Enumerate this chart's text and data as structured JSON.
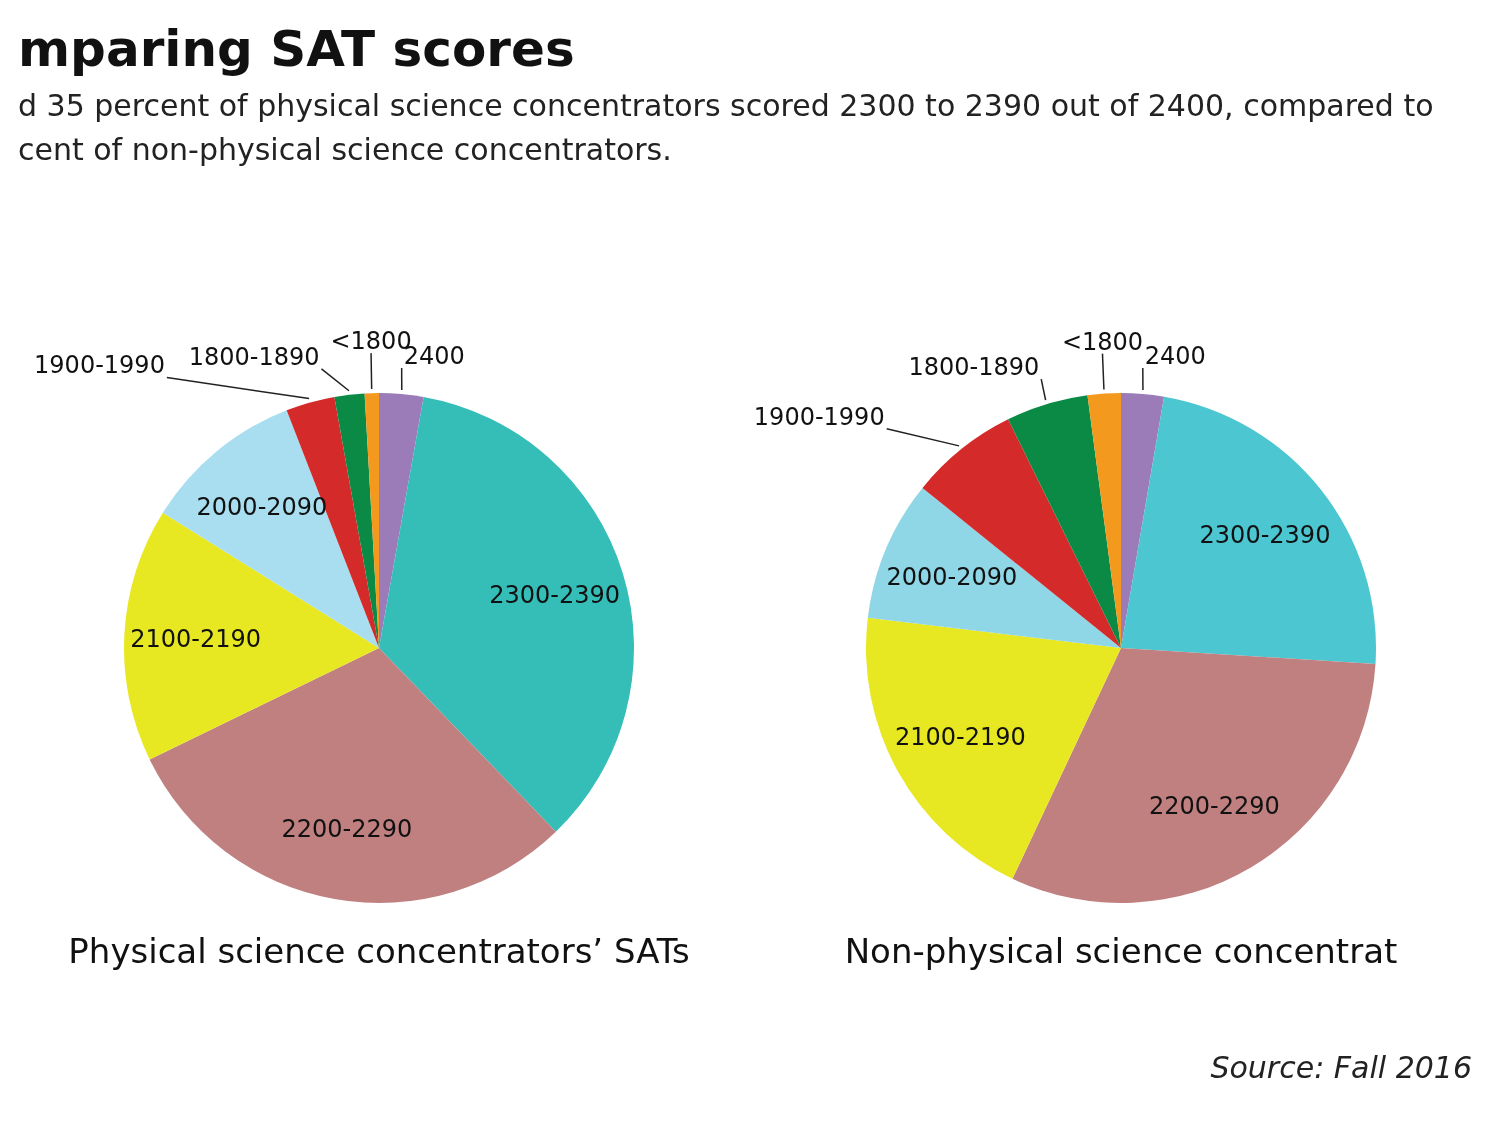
{
  "chart_data": [
    {
      "type": "pie",
      "title": "mparing SAT scores",
      "subtitle": "d 35 percent of physical science concentrators scored 2300 to 2390 out of 2400, compared to\ncent of non-physical science concentrators.",
      "xlabel": "Physical science concentrators’ SATs",
      "categories": [
        "2400",
        "2300-2390",
        "2200-2290",
        "2100-2190",
        "2000-2090",
        "1900-1990",
        "1800-1890",
        "<1800"
      ],
      "values": [
        2.8,
        35,
        30,
        16.1,
        10.2,
        3.1,
        1.9,
        0.9
      ],
      "colors": [
        "#9b7bb8",
        "#35bdb8",
        "#c08080",
        "#e8e822",
        "#a8def0",
        "#d42a2a",
        "#0a8a44",
        "#f39a1e"
      ]
    },
    {
      "type": "pie",
      "xlabel": "Non-physical science concentrat",
      "categories": [
        "2400",
        "2300-2390",
        "2200-2290",
        "2100-2190",
        "2000-2090",
        "1900-1990",
        "1800-1890",
        "<1800"
      ],
      "values": [
        2.7,
        23.3,
        31,
        19.9,
        8.9,
        6.9,
        5.2,
        2.1
      ],
      "colors": [
        "#9b7bb8",
        "#4cc6d0",
        "#c08080",
        "#e8e822",
        "#8fd6e6",
        "#d42a2a",
        "#0a8a44",
        "#f39a1e"
      ],
      "annotations": [
        "Source: Fall 2016"
      ]
    }
  ]
}
